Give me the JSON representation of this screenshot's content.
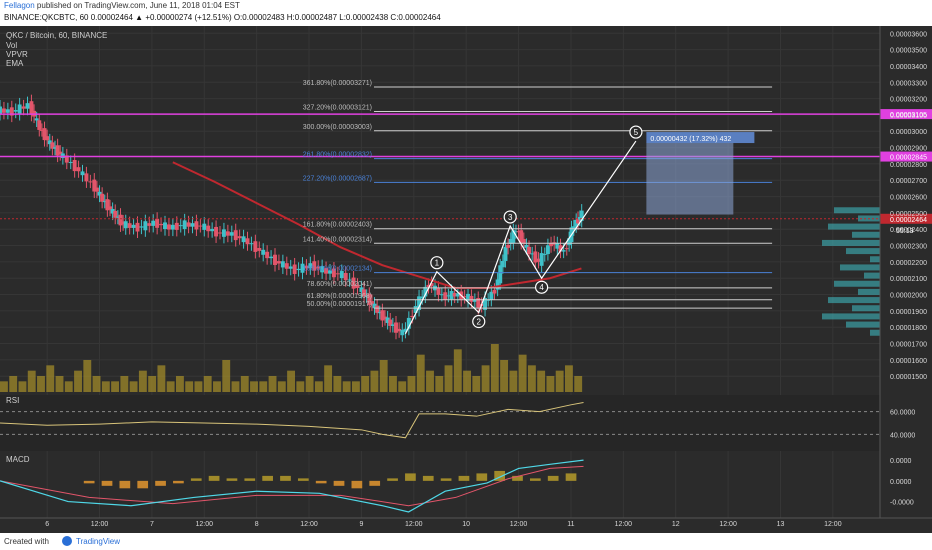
{
  "header": {
    "user": "Fellagon",
    "published": "published on TradingView.com, June 11, 2018 01:04 EST",
    "line2": "BINANCE:QKCBTC, 60  0.00002464 ▲ +0.00000274 (+12.51%) O:0.00002483 H:0.00002487 L:0.00002438 C:0.00002464"
  },
  "footer": {
    "created": "Created with",
    "brand": "TradingView"
  },
  "chart_data": {
    "type": "candlestick",
    "symbol_label": "QKC / Bitcoin, 60, BINANCE",
    "indicators": [
      "Vol",
      "VPVR",
      "EMA"
    ],
    "ylim": [
      1.44e-05,
      3.62e-05
    ],
    "price_ticks": [
      3.6e-05,
      3.5e-05,
      3.4e-05,
      3.3e-05,
      3.2e-05,
      3.1e-05,
      3e-05,
      2.9e-05,
      2.8e-05,
      2.7e-05,
      2.6e-05,
      2.5e-05,
      2.4e-05,
      2.3e-05,
      2.2e-05,
      2.1e-05,
      2e-05,
      1.9e-05,
      1.8e-05,
      1.7e-05,
      1.6e-05,
      1.5e-05
    ],
    "price_tick_labels": [
      "0.00003600",
      "0.00003500",
      "0.00003400",
      "0.00003300",
      "0.00003200",
      "0.00003100",
      "0.00003000",
      "0.00002900",
      "0.00002800",
      "0.00002700",
      "0.00002600",
      "0.00002500",
      "0.00002400",
      "0.00002300",
      "0.00002200",
      "0.00002100",
      "0.00002000",
      "0.00001900",
      "0.00001800",
      "0.00001700",
      "0.00001600",
      "0.00001500"
    ],
    "x_labels": [
      {
        "t": 6,
        "label": "6"
      },
      {
        "t": 6.5,
        "label": "12:00"
      },
      {
        "t": 7,
        "label": "7"
      },
      {
        "t": 7.5,
        "label": "12:00"
      },
      {
        "t": 8,
        "label": "8"
      },
      {
        "t": 8.5,
        "label": "12:00"
      },
      {
        "t": 9,
        "label": "9"
      },
      {
        "t": 9.5,
        "label": "12:00"
      },
      {
        "t": 10,
        "label": "10"
      },
      {
        "t": 10.5,
        "label": "12:00"
      },
      {
        "t": 11,
        "label": "11"
      },
      {
        "t": 11.5,
        "label": "12:00"
      },
      {
        "t": 12,
        "label": "12"
      },
      {
        "t": 12.5,
        "label": "12:00"
      },
      {
        "t": 13,
        "label": "13"
      },
      {
        "t": 13.5,
        "label": "12:00"
      }
    ],
    "xlim": [
      5.55,
      13.95
    ],
    "price_path": [
      [
        5.55,
        3.13e-05
      ],
      [
        5.7,
        3.12e-05
      ],
      [
        5.85,
        3.16e-05
      ],
      [
        5.95,
        3.02e-05
      ],
      [
        6.05,
        2.92e-05
      ],
      [
        6.15,
        2.86e-05
      ],
      [
        6.3,
        2.78e-05
      ],
      [
        6.45,
        2.68e-05
      ],
      [
        6.55,
        2.58e-05
      ],
      [
        6.65,
        2.5e-05
      ],
      [
        6.75,
        2.43e-05
      ],
      [
        6.9,
        2.41e-05
      ],
      [
        7.05,
        2.44e-05
      ],
      [
        7.2,
        2.41e-05
      ],
      [
        7.35,
        2.43e-05
      ],
      [
        7.5,
        2.42e-05
      ],
      [
        7.65,
        2.38e-05
      ],
      [
        7.8,
        2.37e-05
      ],
      [
        7.95,
        2.32e-05
      ],
      [
        8.1,
        2.25e-05
      ],
      [
        8.25,
        2.19e-05
      ],
      [
        8.4,
        2.15e-05
      ],
      [
        8.55,
        2.18e-05
      ],
      [
        8.7,
        2.14e-05
      ],
      [
        8.85,
        2.12e-05
      ],
      [
        9.0,
        2.04e-05
      ],
      [
        9.1,
        1.96e-05
      ],
      [
        9.2,
        1.88e-05
      ],
      [
        9.3,
        1.82e-05
      ],
      [
        9.42,
        1.76e-05
      ],
      [
        9.55,
        1.93e-05
      ],
      [
        9.67,
        2.07e-05
      ],
      [
        9.8,
        1.99e-05
      ],
      [
        9.92,
        2e-05
      ],
      [
        10.05,
        1.98e-05
      ],
      [
        10.18,
        1.93e-05
      ],
      [
        10.3,
        2.03e-05
      ],
      [
        10.4,
        2.28e-05
      ],
      [
        10.5,
        2.4e-05
      ],
      [
        10.6,
        2.28e-05
      ],
      [
        10.72,
        2.2e-05
      ],
      [
        10.84,
        2.32e-05
      ],
      [
        10.96,
        2.26e-05
      ],
      [
        11.05,
        2.43e-05
      ],
      [
        11.12,
        2.49e-05
      ]
    ],
    "last_price": 2.464e-05,
    "last_price_label": "0.00002464",
    "countdown_label": "55:13",
    "ema_path": [
      [
        7.2,
        2.81e-05
      ],
      [
        7.6,
        2.69e-05
      ],
      [
        8.0,
        2.56e-05
      ],
      [
        8.4,
        2.43e-05
      ],
      [
        8.8,
        2.29e-05
      ],
      [
        9.2,
        2.18e-05
      ],
      [
        9.6,
        2.1e-05
      ],
      [
        9.9,
        2.04e-05
      ],
      [
        10.2,
        2.04e-05
      ],
      [
        10.5,
        2.07e-05
      ],
      [
        10.8,
        2.1e-05
      ],
      [
        11.1,
        2.16e-05
      ]
    ],
    "horizontal_levels": [
      {
        "price": 3.105e-05,
        "label": "0.00003105"
      },
      {
        "price": 2.845e-05,
        "label": "0.00002845"
      }
    ],
    "fib_levels": [
      {
        "price": 3.271e-05,
        "label": "361.80%(0.00003271)"
      },
      {
        "price": 3.121e-05,
        "label": "327.20%(0.00003121)"
      },
      {
        "price": 3.003e-05,
        "label": "300.00%(0.00003003)"
      },
      {
        "price": 2.832e-05,
        "label": "261.80%(0.00002832)"
      },
      {
        "price": 2.687e-05,
        "label": "227.20%(0.00002687)"
      },
      {
        "price": 2.403e-05,
        "label": "161.80%(0.00002403)"
      },
      {
        "price": 2.314e-05,
        "label": "141.40%(0.00002314)"
      },
      {
        "price": 2.134e-05,
        "label": "100.00%(0.00002134)"
      },
      {
        "price": 2.041e-05,
        "label": "78.60%(0.00002041)"
      },
      {
        "price": 1.968e-05,
        "label": "61.80%(0.00001968)"
      },
      {
        "price": 1.917e-05,
        "label": "50.00%(0.00001917)"
      }
    ],
    "wave_points": [
      {
        "label": "1",
        "t": 9.72,
        "price": 2.14e-05
      },
      {
        "label": "2",
        "t": 10.12,
        "price": 1.89e-05
      },
      {
        "label": "3",
        "t": 10.42,
        "price": 2.42e-05
      },
      {
        "label": "4",
        "t": 10.72,
        "price": 2.1e-05
      },
      {
        "label": "5",
        "t": 11.62,
        "price": 2.94e-05
      }
    ],
    "wave_start": {
      "t": 9.42,
      "price": 1.76e-05
    },
    "target_box": {
      "t0": 11.72,
      "t1": 12.55,
      "p0": 2.49e-05,
      "p1": 2.93e-05
    },
    "target_label": "0.00000432 (17.32%) 432",
    "volume": [
      2,
      3,
      2,
      4,
      3,
      5,
      3,
      2,
      4,
      6,
      3,
      2,
      2,
      3,
      2,
      4,
      3,
      5,
      2,
      3,
      2,
      2,
      3,
      2,
      6,
      2,
      3,
      2,
      2,
      3,
      2,
      4,
      2,
      3,
      2,
      5,
      3,
      2,
      2,
      3,
      4,
      6,
      3,
      2,
      3,
      7,
      4,
      3,
      5,
      8,
      4,
      3,
      5,
      9,
      6,
      4,
      7,
      5,
      4,
      3,
      4,
      5,
      3
    ],
    "rsi": {
      "ticks": [
        60,
        40
      ],
      "tick_labels": [
        "60.0000",
        "40.0000"
      ],
      "ylim": [
        28,
        72
      ],
      "path": [
        [
          5.55,
          50
        ],
        [
          6.0,
          48
        ],
        [
          6.5,
          49
        ],
        [
          7.0,
          51
        ],
        [
          7.5,
          50
        ],
        [
          8.0,
          49
        ],
        [
          8.5,
          47
        ],
        [
          9.0,
          44
        ],
        [
          9.2,
          40
        ],
        [
          9.42,
          37
        ],
        [
          9.55,
          58
        ],
        [
          9.8,
          58
        ],
        [
          10.1,
          56
        ],
        [
          10.4,
          62
        ],
        [
          10.7,
          60
        ],
        [
          11.0,
          66
        ],
        [
          11.12,
          68
        ]
      ]
    },
    "macd": {
      "ticks": [
        1e-07,
        0,
        -1e-07
      ],
      "tick_labels": [
        "0.0000",
        "0.0000",
        "-0.0000"
      ],
      "ylim": [
        -1.6e-07,
        1.2e-07
      ],
      "macd_path": [
        [
          5.55,
          -0.0
        ],
        [
          6.2,
          -1e-07
        ],
        [
          6.8,
          -1.2e-07
        ],
        [
          7.4,
          -8e-08
        ],
        [
          8.0,
          -5e-08
        ],
        [
          8.6,
          -6e-08
        ],
        [
          9.2,
          -1.2e-07
        ],
        [
          9.45,
          -1.5e-07
        ],
        [
          9.8,
          -5e-08
        ],
        [
          10.2,
          -1e-08
        ],
        [
          10.5,
          6e-08
        ],
        [
          10.8,
          8e-08
        ],
        [
          11.12,
          1e-07
        ]
      ],
      "signal_path": [
        [
          5.55,
          0.0
        ],
        [
          6.4,
          -8e-08
        ],
        [
          7.2,
          -1.1e-07
        ],
        [
          8.0,
          -7e-08
        ],
        [
          8.8,
          -7e-08
        ],
        [
          9.45,
          -1.2e-07
        ],
        [
          9.9,
          -8e-08
        ],
        [
          10.4,
          1e-08
        ],
        [
          10.8,
          6e-08
        ],
        [
          11.12,
          7e-08
        ]
      ],
      "hist": [
        -1,
        -2,
        -3,
        -3,
        -2,
        -1,
        1,
        2,
        1,
        1,
        2,
        2,
        1,
        -1,
        -2,
        -3,
        -2,
        1,
        3,
        2,
        1,
        2,
        3,
        4,
        2,
        1,
        2,
        3
      ]
    },
    "colors": {
      "up": "#3fc1c9",
      "down": "#e2556a",
      "ema": "#c0282f",
      "level": "#e040e0",
      "fib_gray": "#cfcfcf",
      "fib_blue": "#4a82d8",
      "volume": "#a08a2a",
      "rsi": "#d8c47a",
      "macd": "#4fd8e8",
      "signal": "#e2556a"
    }
  }
}
